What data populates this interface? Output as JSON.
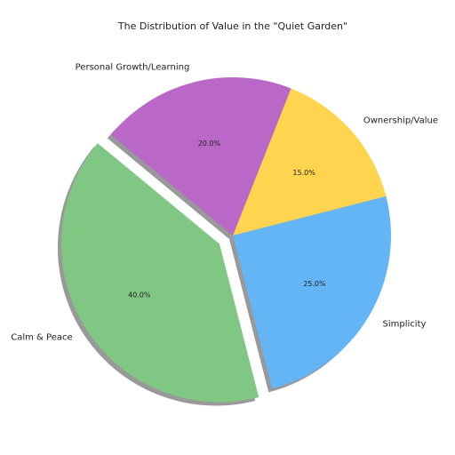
{
  "chart_data": {
    "type": "pie",
    "title": "The Distribution of Value in the \"Quiet Garden\"",
    "categories": [
      "Calm & Peace",
      "Simplicity",
      "Ownership/Value",
      "Personal Growth/Learning"
    ],
    "values": [
      40,
      25,
      15,
      20
    ],
    "value_labels": [
      "40.0%",
      "25.0%",
      "15.0%",
      "20.0%"
    ],
    "colors": [
      "#81c784",
      "#64b5f6",
      "#ffd54f",
      "#ba68c8"
    ],
    "explode": [
      0.1,
      0,
      0,
      0
    ],
    "shadow": true
  }
}
